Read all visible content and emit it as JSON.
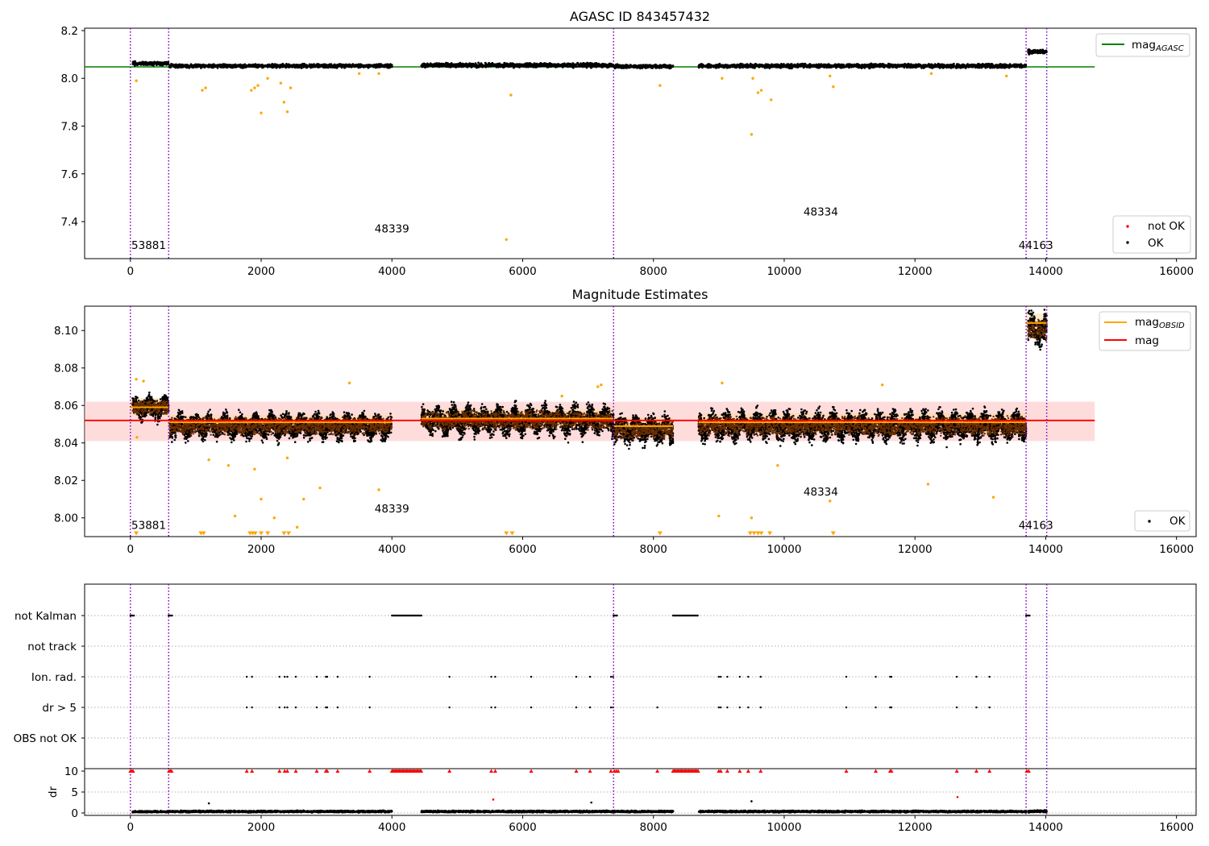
{
  "colors": {
    "ok": "#000000",
    "not_ok": "#ff0000",
    "agasc_line": "#008000",
    "obsid": "#ffa500",
    "mag_line": "#ff0000",
    "mag_band": "#ffc0c0",
    "obsid_band": "#ffd8a0",
    "obs_boundary": "#7f00bf",
    "grid": "#b0b0b0"
  },
  "chart_data": [
    {
      "type": "scatter",
      "title": "AGASC ID 843457432",
      "xlim": [
        -700,
        16300
      ],
      "ylim": [
        7.245,
        8.21
      ],
      "xticks": [
        0,
        2000,
        4000,
        6000,
        8000,
        10000,
        12000,
        14000,
        16000
      ],
      "yticks": [
        7.4,
        7.6,
        7.8,
        8.0,
        8.2
      ],
      "ytick_labels": [
        "7.4",
        "7.6",
        "7.8",
        "8.0",
        "8.2"
      ],
      "mag_agasc": 8.048,
      "mag_agasc_xrange": [
        -700,
        14750
      ],
      "obs_boundaries": [
        0,
        585,
        7390,
        13700,
        14015
      ],
      "obsid_labels": [
        {
          "text": "53881",
          "x": 280,
          "y": 7.285
        },
        {
          "text": "48339",
          "x": 4000,
          "y": 7.355
        },
        {
          "text": "48334",
          "x": 10560,
          "y": 7.425
        },
        {
          "text": "44163",
          "x": 13850,
          "y": 7.285
        }
      ],
      "segments": [
        {
          "x": [
            30,
            585
          ],
          "mean": 8.062,
          "spread": 0.01
        },
        {
          "x": [
            600,
            4000
          ],
          "mean": 8.052,
          "spread": 0.01
        },
        {
          "x": [
            4450,
            7390
          ],
          "mean": 8.055,
          "spread": 0.012
        },
        {
          "x": [
            7400,
            8300
          ],
          "mean": 8.05,
          "spread": 0.01
        },
        {
          "x": [
            8690,
            13700
          ],
          "mean": 8.052,
          "spread": 0.011
        },
        {
          "x": [
            13730,
            14015
          ],
          "mean": 8.112,
          "spread": 0.013
        }
      ],
      "outliers": [
        [
          90,
          7.99
        ],
        [
          1100,
          7.95
        ],
        [
          1150,
          7.96
        ],
        [
          1900,
          7.96
        ],
        [
          1950,
          7.97
        ],
        [
          1850,
          7.95
        ],
        [
          2000,
          7.855
        ],
        [
          2100,
          8.0
        ],
        [
          2300,
          7.98
        ],
        [
          2350,
          7.9
        ],
        [
          2400,
          7.86
        ],
        [
          2450,
          7.96
        ],
        [
          3500,
          8.02
        ],
        [
          3800,
          8.02
        ],
        [
          5750,
          7.325
        ],
        [
          5820,
          7.93
        ],
        [
          8100,
          7.97
        ],
        [
          9050,
          8.0
        ],
        [
          9500,
          7.765
        ],
        [
          9520,
          8.0
        ],
        [
          9600,
          7.94
        ],
        [
          9650,
          7.95
        ],
        [
          9800,
          7.91
        ],
        [
          10750,
          7.965
        ],
        [
          10700,
          8.01
        ],
        [
          12250,
          8.02
        ],
        [
          13400,
          8.01
        ]
      ],
      "legend": [
        {
          "label": "mag",
          "sub": "AGASC",
          "kind": "line",
          "color": "#008000",
          "position": "upper right"
        },
        {
          "label": "not OK",
          "kind": "dot",
          "color": "#ff0000",
          "position": "lower right"
        },
        {
          "label": "OK",
          "kind": "dot",
          "color": "#000000",
          "position": "lower right"
        }
      ]
    },
    {
      "type": "scatter",
      "title": "Magnitude Estimates",
      "xlim": [
        -700,
        16300
      ],
      "ylim": [
        7.99,
        8.113
      ],
      "xticks": [
        0,
        2000,
        4000,
        6000,
        8000,
        10000,
        12000,
        14000,
        16000
      ],
      "yticks": [
        8.0,
        8.02,
        8.04,
        8.06,
        8.08,
        8.1
      ],
      "ytick_labels": [
        "8.00",
        "8.02",
        "8.04",
        "8.06",
        "8.08",
        "8.10"
      ],
      "mag": 8.052,
      "mag_band": [
        8.041,
        8.062
      ],
      "mag_xrange": [
        -700,
        14750
      ],
      "obs_boundaries": [
        0,
        585,
        7390,
        13700,
        14015
      ],
      "obsid_labels": [
        {
          "text": "53881",
          "x": 280,
          "y": 7.994
        },
        {
          "text": "48339",
          "x": 4000,
          "y": 8.003
        },
        {
          "text": "48334",
          "x": 10560,
          "y": 8.012
        },
        {
          "text": "44163",
          "x": 13850,
          "y": 7.994
        }
      ],
      "obsid_means": [
        {
          "x": [
            0,
            585
          ],
          "mag": 8.059,
          "band": [
            8.055,
            8.064
          ]
        },
        {
          "x": [
            585,
            4000
          ],
          "mag": 8.051,
          "band": [
            8.047,
            8.055
          ]
        },
        {
          "x": [
            4450,
            7390
          ],
          "mag": 8.053,
          "band": [
            8.049,
            8.058
          ]
        },
        {
          "x": [
            7390,
            8300
          ],
          "mag": 8.049,
          "band": [
            8.044,
            8.054
          ]
        },
        {
          "x": [
            8690,
            13700
          ],
          "mag": 8.051,
          "band": [
            8.046,
            8.056
          ]
        },
        {
          "x": [
            13700,
            14015
          ],
          "mag": 8.104,
          "band": [
            8.099,
            8.109
          ]
        }
      ],
      "segments": [
        {
          "x": [
            30,
            585
          ],
          "mean": 8.059,
          "spread": 0.007
        },
        {
          "x": [
            600,
            4000
          ],
          "mean": 8.049,
          "spread": 0.008
        },
        {
          "x": [
            4450,
            7390
          ],
          "mean": 8.052,
          "spread": 0.009
        },
        {
          "x": [
            7400,
            8300
          ],
          "mean": 8.047,
          "spread": 0.009
        },
        {
          "x": [
            8690,
            13700
          ],
          "mean": 8.049,
          "spread": 0.009
        },
        {
          "x": [
            13730,
            14015
          ],
          "mean": 8.1,
          "spread": 0.011
        }
      ],
      "outliers": [
        [
          90,
          8.074
        ],
        [
          200,
          8.073
        ],
        [
          100,
          8.043
        ],
        [
          1200,
          8.031
        ],
        [
          1500,
          8.028
        ],
        [
          1600,
          8.001
        ],
        [
          1900,
          8.026
        ],
        [
          2000,
          8.01
        ],
        [
          2200,
          8.0
        ],
        [
          2400,
          8.032
        ],
        [
          2550,
          7.995
        ],
        [
          2650,
          8.01
        ],
        [
          2900,
          8.016
        ],
        [
          3800,
          8.015
        ],
        [
          9000,
          8.001
        ],
        [
          9500,
          8.0
        ],
        [
          9900,
          8.028
        ],
        [
          10700,
          8.009
        ],
        [
          12200,
          8.018
        ],
        [
          13200,
          8.011
        ],
        [
          6600,
          8.065
        ],
        [
          7150,
          8.07
        ],
        [
          7200,
          8.071
        ],
        [
          9050,
          8.072
        ],
        [
          11500,
          8.071
        ],
        [
          3350,
          8.072
        ]
      ],
      "clipped": [
        90,
        1080,
        1120,
        1830,
        1870,
        1910,
        2000,
        2100,
        2350,
        2420,
        5750,
        5840,
        8100,
        9480,
        9540,
        9600,
        9650,
        9780,
        10750
      ],
      "legend": [
        {
          "label": "mag",
          "sub": "OBSID",
          "kind": "line",
          "color": "#ffa500",
          "position": "upper right"
        },
        {
          "label": "mag",
          "kind": "line",
          "color": "#ff0000",
          "position": "upper right"
        },
        {
          "label": "OK",
          "kind": "dot",
          "color": "#000000",
          "position": "lower right"
        }
      ]
    },
    {
      "type": "scatter",
      "title": "",
      "xlim": [
        -700,
        16300
      ],
      "flag_rows": [
        "not Kalman",
        "not track",
        "Ion. rad.",
        "dr > 5",
        "OBS not OK"
      ],
      "obs_boundaries": [
        0,
        585,
        7390,
        13700,
        14015
      ],
      "not_kalman_ranges": [
        [
          0,
          60
        ],
        [
          585,
          640
        ],
        [
          4000,
          4450
        ],
        [
          7390,
          7450
        ],
        [
          8300,
          8690
        ],
        [
          13700,
          13760
        ]
      ],
      "not_track_events": [],
      "ion_rad_events": [
        1780,
        1860,
        2280,
        2360,
        2400,
        2530,
        2850,
        2990,
        3010,
        3170,
        3660,
        4880,
        5520,
        5580,
        6130,
        6820,
        7030,
        7350,
        7380,
        9000,
        9030,
        9130,
        9320,
        9450,
        9640,
        10950,
        11400,
        11620,
        11640,
        12640,
        12940,
        13140
      ],
      "dr5_events": [
        1780,
        1860,
        2280,
        2360,
        2400,
        2530,
        2850,
        2990,
        3010,
        3170,
        3660,
        4880,
        5520,
        5580,
        6130,
        6820,
        7030,
        7350,
        7380,
        8060,
        9000,
        9030,
        9130,
        9320,
        9450,
        9640,
        10950,
        11400,
        11620,
        11640,
        12640,
        12940,
        13140
      ],
      "obs_not_ok_events": []
    },
    {
      "type": "scatter",
      "title": "",
      "xlim": [
        -700,
        16300
      ],
      "ylim": [
        -0.6,
        10.3
      ],
      "ylabel": "dr",
      "xticks": [
        0,
        2000,
        4000,
        6000,
        8000,
        10000,
        12000,
        14000,
        16000
      ],
      "yticks": [
        0,
        5,
        10
      ],
      "ytick_labels": [
        "0",
        "5",
        "10"
      ],
      "segments": [
        {
          "x": [
            30,
            585
          ],
          "mean": 0.3,
          "spread": 0.25
        },
        {
          "x": [
            600,
            4000
          ],
          "mean": 0.35,
          "spread": 0.3
        },
        {
          "x": [
            4450,
            7390
          ],
          "mean": 0.35,
          "spread": 0.3
        },
        {
          "x": [
            7400,
            8300
          ],
          "mean": 0.35,
          "spread": 0.3
        },
        {
          "x": [
            8690,
            13700
          ],
          "mean": 0.35,
          "spread": 0.3
        },
        {
          "x": [
            13730,
            14015
          ],
          "mean": 0.4,
          "spread": 0.35
        }
      ],
      "outliers": [
        [
          5550,
          3.2
        ],
        [
          7050,
          2.5
        ],
        [
          9500,
          2.8
        ],
        [
          1200,
          2.3
        ],
        [
          12650,
          3.8
        ]
      ],
      "clipped_red": [
        0,
        20,
        40,
        590,
        610,
        630,
        1780,
        1860,
        2280,
        2360,
        2400,
        2530,
        2850,
        2990,
        3010,
        3170,
        3660,
        4880,
        5520,
        5580,
        6130,
        6820,
        7030,
        7350,
        7400,
        7430,
        7460,
        8060,
        9000,
        9030,
        9130,
        9320,
        9450,
        9640,
        10950,
        11400,
        11620,
        11640,
        12640,
        12940,
        13140,
        13710,
        13740
      ],
      "clipped_red_ranges": [
        [
          4000,
          4450
        ],
        [
          8300,
          8690
        ]
      ]
    }
  ]
}
